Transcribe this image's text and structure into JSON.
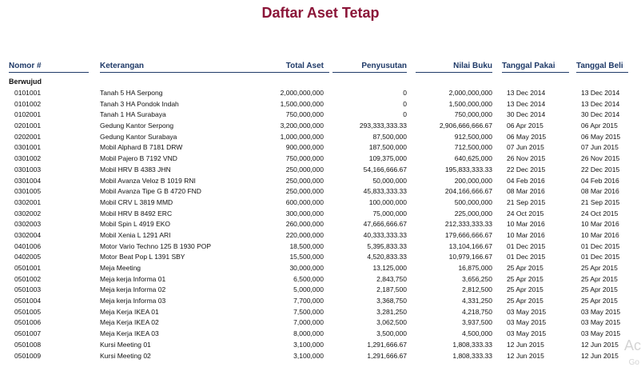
{
  "title": "Daftar Aset Tetap",
  "headers": {
    "nomor": "Nomor #",
    "keterangan": "Keterangan",
    "total": "Total Aset",
    "penyusutan": "Penyusutan",
    "nilai": "Nilai Buku",
    "tgl_pakai": "Tanggal Pakai",
    "tgl_beli": "Tanggal Beli"
  },
  "group_label": "Berwujud",
  "rows": [
    {
      "no": "0101001",
      "ket": "Tanah 5 HA Serpong",
      "total": "2,000,000,000",
      "peny": "0",
      "nilai": "2,000,000,000",
      "pakai": "13 Dec 2014",
      "beli": "13 Dec 2014"
    },
    {
      "no": "0101002",
      "ket": "Tanah 3 HA Pondok Indah",
      "total": "1,500,000,000",
      "peny": "0",
      "nilai": "1,500,000,000",
      "pakai": "13 Dec 2014",
      "beli": "13 Dec 2014"
    },
    {
      "no": "0102001",
      "ket": "Tanah 1 HA Surabaya",
      "total": "750,000,000",
      "peny": "0",
      "nilai": "750,000,000",
      "pakai": "30 Dec 2014",
      "beli": "30 Dec 2014"
    },
    {
      "no": "0201001",
      "ket": "Gedung Kantor Serpong",
      "total": "3,200,000,000",
      "peny": "293,333,333.33",
      "nilai": "2,906,666,666.67",
      "pakai": "06 Apr 2015",
      "beli": "06 Apr 2015"
    },
    {
      "no": "0202001",
      "ket": "Gedung Kantor Surabaya",
      "total": "1,000,000,000",
      "peny": "87,500,000",
      "nilai": "912,500,000",
      "pakai": "06 May 2015",
      "beli": "06 May 2015"
    },
    {
      "no": "0301001",
      "ket": "Mobil Alphard B 7181 DRW",
      "total": "900,000,000",
      "peny": "187,500,000",
      "nilai": "712,500,000",
      "pakai": "07 Jun 2015",
      "beli": "07 Jun 2015"
    },
    {
      "no": "0301002",
      "ket": "Mobil Pajero B 7192 VND",
      "total": "750,000,000",
      "peny": "109,375,000",
      "nilai": "640,625,000",
      "pakai": "26 Nov 2015",
      "beli": "26 Nov 2015"
    },
    {
      "no": "0301003",
      "ket": "Mobil HRV B 4383 JHN",
      "total": "250,000,000",
      "peny": "54,166,666.67",
      "nilai": "195,833,333.33",
      "pakai": "22 Dec 2015",
      "beli": "22 Dec 2015"
    },
    {
      "no": "0301004",
      "ket": "Mobil Avanza Veloz B 1019 RNI",
      "total": "250,000,000",
      "peny": "50,000,000",
      "nilai": "200,000,000",
      "pakai": "04 Feb 2016",
      "beli": "04 Feb 2016"
    },
    {
      "no": "0301005",
      "ket": "Mobil Avanza Tipe G B 4720 FND",
      "total": "250,000,000",
      "peny": "45,833,333.33",
      "nilai": "204,166,666.67",
      "pakai": "08 Mar 2016",
      "beli": "08 Mar 2016"
    },
    {
      "no": "0302001",
      "ket": "Mobil CRV L 3819 MMD",
      "total": "600,000,000",
      "peny": "100,000,000",
      "nilai": "500,000,000",
      "pakai": "21 Sep 2015",
      "beli": "21 Sep 2015"
    },
    {
      "no": "0302002",
      "ket": "Mobil HRV B 8492 ERC",
      "total": "300,000,000",
      "peny": "75,000,000",
      "nilai": "225,000,000",
      "pakai": "24 Oct 2015",
      "beli": "24 Oct 2015"
    },
    {
      "no": "0302003",
      "ket": "Mobil Spin L 4919 EKO",
      "total": "260,000,000",
      "peny": "47,666,666.67",
      "nilai": "212,333,333.33",
      "pakai": "10 Mar 2016",
      "beli": "10 Mar 2016"
    },
    {
      "no": "0302004",
      "ket": "Mobil Xenia L 1291 ARI",
      "total": "220,000,000",
      "peny": "40,333,333.33",
      "nilai": "179,666,666.67",
      "pakai": "10 Mar 2016",
      "beli": "10 Mar 2016"
    },
    {
      "no": "0401006",
      "ket": "Motor  Vario Techno 125 B 1930 POP",
      "total": "18,500,000",
      "peny": "5,395,833.33",
      "nilai": "13,104,166.67",
      "pakai": "01 Dec 2015",
      "beli": "01 Dec 2015"
    },
    {
      "no": "0402005",
      "ket": "Motor Beat Pop L 1391 SBY",
      "total": "15,500,000",
      "peny": "4,520,833.33",
      "nilai": "10,979,166.67",
      "pakai": "01 Dec 2015",
      "beli": "01 Dec 2015"
    },
    {
      "no": "0501001",
      "ket": "Meja Meeting",
      "total": "30,000,000",
      "peny": "13,125,000",
      "nilai": "16,875,000",
      "pakai": "25 Apr 2015",
      "beli": "25 Apr 2015"
    },
    {
      "no": "0501002",
      "ket": "Meja kerja Informa 01",
      "total": "6,500,000",
      "peny": "2,843,750",
      "nilai": "3,656,250",
      "pakai": "25 Apr 2015",
      "beli": "25 Apr 2015"
    },
    {
      "no": "0501003",
      "ket": "Meja kerja Informa 02",
      "total": "5,000,000",
      "peny": "2,187,500",
      "nilai": "2,812,500",
      "pakai": "25 Apr 2015",
      "beli": "25 Apr 2015"
    },
    {
      "no": "0501004",
      "ket": "Meja kerja Informa 03",
      "total": "7,700,000",
      "peny": "3,368,750",
      "nilai": "4,331,250",
      "pakai": "25 Apr 2015",
      "beli": "25 Apr 2015"
    },
    {
      "no": "0501005",
      "ket": "Meja Kerja IKEA 01",
      "total": "7,500,000",
      "peny": "3,281,250",
      "nilai": "4,218,750",
      "pakai": "03 May 2015",
      "beli": "03 May 2015"
    },
    {
      "no": "0501006",
      "ket": "Meja Kerja IKEA 02",
      "total": "7,000,000",
      "peny": "3,062,500",
      "nilai": "3,937,500",
      "pakai": "03 May 2015",
      "beli": "03 May 2015"
    },
    {
      "no": "0501007",
      "ket": "Meja Kerja IKEA 03",
      "total": "8,000,000",
      "peny": "3,500,000",
      "nilai": "4,500,000",
      "pakai": "03 May 2015",
      "beli": "03 May 2015"
    },
    {
      "no": "0501008",
      "ket": "Kursi Meeting 01",
      "total": "3,100,000",
      "peny": "1,291,666.67",
      "nilai": "1,808,333.33",
      "pakai": "12 Jun 2015",
      "beli": "12 Jun 2015"
    },
    {
      "no": "0501009",
      "ket": "Kursi Meeting 02",
      "total": "3,100,000",
      "peny": "1,291,666.67",
      "nilai": "1,808,333.33",
      "pakai": "12 Jun 2015",
      "beli": "12 Jun 2015"
    }
  ],
  "watermark": {
    "line1": "Ac",
    "line2": "Go"
  }
}
